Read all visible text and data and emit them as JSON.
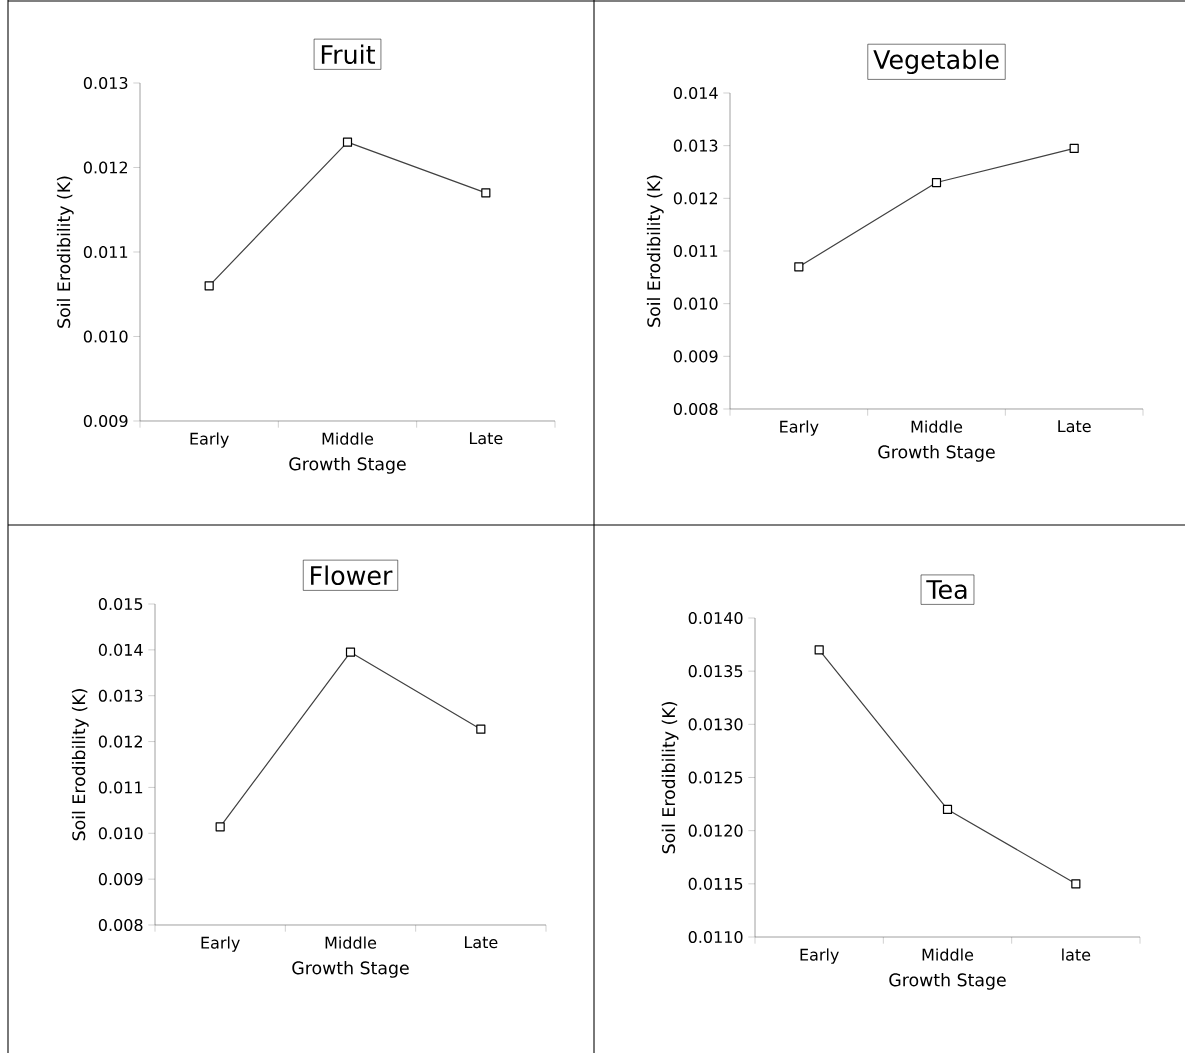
{
  "chart_data": [
    {
      "type": "line",
      "title": "Fruit",
      "xlabel": "Growth Stage",
      "ylabel": "Soil Erodibility (K)",
      "categories": [
        "Early",
        "Middle",
        "Late"
      ],
      "marker": "square",
      "series": [
        {
          "color": "#404040",
          "values": [
            0.0106,
            0.0123,
            0.0117
          ]
        }
      ],
      "ylim": [
        0.009,
        0.013
      ],
      "yticks": [
        {
          "value": 0.009,
          "label": "0.009"
        },
        {
          "value": 0.01,
          "label": "0.010"
        },
        {
          "value": 0.011,
          "label": "0.011"
        },
        {
          "value": 0.012,
          "label": "0.012"
        },
        {
          "value": 0.013,
          "label": "0.013"
        }
      ]
    },
    {
      "type": "line",
      "title": "Vegetable",
      "xlabel": "Growth Stage",
      "ylabel": "Soil Erodibility (K)",
      "categories": [
        "Early",
        "Middle",
        "Late"
      ],
      "marker": "square",
      "series": [
        {
          "color": "#404040",
          "values": [
            0.0107,
            0.0123,
            0.01295
          ]
        }
      ],
      "ylim": [
        0.008,
        0.014
      ],
      "yticks": [
        {
          "value": 0.008,
          "label": "0.008"
        },
        {
          "value": 0.009,
          "label": "0.009"
        },
        {
          "value": 0.01,
          "label": "0.010"
        },
        {
          "value": 0.011,
          "label": "0.011"
        },
        {
          "value": 0.012,
          "label": "0.012"
        },
        {
          "value": 0.013,
          "label": "0.013"
        },
        {
          "value": 0.014,
          "label": "0.014"
        }
      ]
    },
    {
      "type": "line",
      "title": "Flower",
      "xlabel": "Growth Stage",
      "ylabel": "Soil Erodibility (K)",
      "categories": [
        "Early",
        "Middle",
        "Late"
      ],
      "marker": "square",
      "series": [
        {
          "color": "#404040",
          "values": [
            0.01014,
            0.01395,
            0.01227
          ]
        }
      ],
      "ylim": [
        0.008,
        0.015
      ],
      "yticks": [
        {
          "value": 0.008,
          "label": "0.008"
        },
        {
          "value": 0.009,
          "label": "0.009"
        },
        {
          "value": 0.01,
          "label": "0.010"
        },
        {
          "value": 0.011,
          "label": "0.011"
        },
        {
          "value": 0.012,
          "label": "0.012"
        },
        {
          "value": 0.013,
          "label": "0.013"
        },
        {
          "value": 0.014,
          "label": "0.014"
        },
        {
          "value": 0.015,
          "label": "0.015"
        }
      ]
    },
    {
      "type": "line",
      "title": "Tea",
      "xlabel": "Growth Stage",
      "ylabel": "Soil Erodibility (K)",
      "categories": [
        "Early",
        "Middle",
        "late"
      ],
      "marker": "square",
      "series": [
        {
          "color": "#404040",
          "values": [
            0.0137,
            0.0122,
            0.0115
          ]
        }
      ],
      "ylim": [
        0.011,
        0.014
      ],
      "yticks": [
        {
          "value": 0.011,
          "label": "0.0110"
        },
        {
          "value": 0.0115,
          "label": "0.0115"
        },
        {
          "value": 0.012,
          "label": "0.0120"
        },
        {
          "value": 0.0125,
          "label": "0.0125"
        },
        {
          "value": 0.013,
          "label": "0.0130"
        },
        {
          "value": 0.0135,
          "label": "0.0135"
        },
        {
          "value": 0.014,
          "label": "0.0140"
        }
      ]
    }
  ]
}
